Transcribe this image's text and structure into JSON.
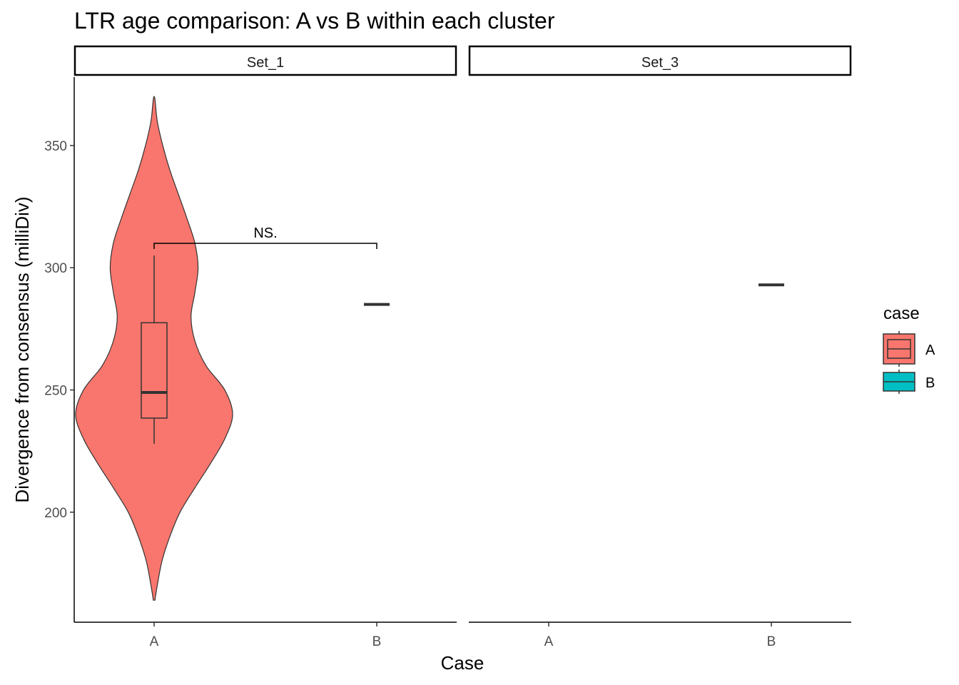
{
  "chart_data": {
    "type": "violin",
    "title": "LTR age comparison: A vs B within each cluster",
    "xlabel": "Case",
    "ylabel": "Divergence from consensus (milliDiv)",
    "ylim": [
      155,
      378
    ],
    "yticks": [
      200,
      250,
      300,
      350
    ],
    "grid": false,
    "categories": [
      "A",
      "B"
    ],
    "facets": [
      {
        "label": "Set_1",
        "groups": [
          {
            "category": "A",
            "violin": {
              "min": 164,
              "max": 369,
              "profile": [
                [
                  164,
                  0.01
                ],
                [
                  170,
                  0.04
                ],
                [
                  180,
                  0.1
                ],
                [
                  190,
                  0.2
                ],
                [
                  200,
                  0.33
                ],
                [
                  210,
                  0.52
                ],
                [
                  220,
                  0.72
                ],
                [
                  230,
                  0.9
                ],
                [
                  240,
                  1.0
                ],
                [
                  250,
                  0.9
                ],
                [
                  260,
                  0.66
                ],
                [
                  270,
                  0.52
                ],
                [
                  280,
                  0.47
                ],
                [
                  290,
                  0.52
                ],
                [
                  300,
                  0.56
                ],
                [
                  310,
                  0.52
                ],
                [
                  320,
                  0.42
                ],
                [
                  330,
                  0.31
                ],
                [
                  340,
                  0.2
                ],
                [
                  350,
                  0.11
                ],
                [
                  360,
                  0.04
                ],
                [
                  369,
                  0.01
                ]
              ]
            },
            "box": {
              "lower_whisker": 228,
              "q1": 238.5,
              "median": 249,
              "q3": 277.5,
              "upper_whisker": 305
            }
          },
          {
            "category": "B",
            "box": {
              "lower_whisker": 285,
              "q1": 285,
              "median": 285,
              "q3": 285,
              "upper_whisker": 285
            }
          }
        ],
        "annotation": {
          "text": "NS.",
          "y": 310,
          "from": "A",
          "to": "B"
        }
      },
      {
        "label": "Set_3",
        "groups": [
          {
            "category": "B",
            "box": {
              "lower_whisker": 293,
              "q1": 293,
              "median": 293,
              "q3": 293,
              "upper_whisker": 293
            }
          }
        ]
      }
    ],
    "legend": {
      "title": "case",
      "position": "right",
      "entries": [
        {
          "label": "A",
          "color": "#F8766D"
        },
        {
          "label": "B",
          "color": "#00BFC4"
        }
      ]
    }
  }
}
